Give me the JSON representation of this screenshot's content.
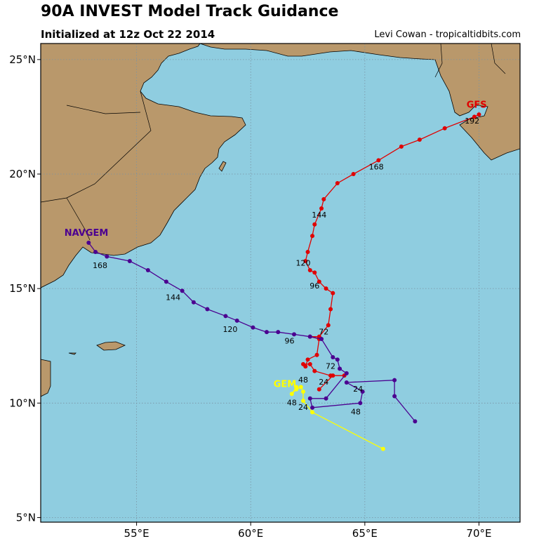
{
  "header": {
    "title": "90A INVEST Model Track Guidance",
    "subtitle": "Initialized at 12z Oct 22 2014",
    "credit": "Levi Cowan - tropicaltidbits.com"
  },
  "chart_data": {
    "type": "map",
    "lon_range": [
      50.8,
      71.8
    ],
    "lat_range": [
      4.8,
      25.7
    ],
    "x_ticks": [
      {
        "v": 55,
        "label": "55°E"
      },
      {
        "v": 60,
        "label": "60°E"
      },
      {
        "v": 65,
        "label": "65°E"
      },
      {
        "v": 70,
        "label": "70°E"
      }
    ],
    "y_ticks": [
      {
        "v": 25,
        "label": "25°N"
      },
      {
        "v": 20,
        "label": "20°N"
      },
      {
        "v": 15,
        "label": "15°N"
      },
      {
        "v": 10,
        "label": "10°N"
      },
      {
        "v": 5,
        "label": "5°N"
      }
    ],
    "grid": true,
    "colors": {
      "ocean": "#8fcde0",
      "land": "#b9986b",
      "coast": "#000000",
      "grid": "#7a93a3"
    },
    "models": [
      {
        "name": "GFS",
        "color": "#e00000",
        "points": [
          [
            63.0,
            10.6
          ],
          [
            63.6,
            11.2
          ],
          [
            64.1,
            11.2
          ],
          [
            63.5,
            11.2
          ],
          [
            62.8,
            11.4
          ],
          [
            62.6,
            11.7
          ],
          [
            62.3,
            11.7
          ],
          [
            62.4,
            11.6
          ],
          [
            62.5,
            11.9
          ],
          [
            62.9,
            12.1
          ],
          [
            63.0,
            12.8
          ],
          [
            62.6,
            12.9
          ],
          [
            63.0,
            12.9
          ],
          [
            63.4,
            13.4
          ],
          [
            63.5,
            14.1
          ],
          [
            63.6,
            14.8
          ],
          [
            63.3,
            15.0
          ],
          [
            63.0,
            15.3
          ],
          [
            62.8,
            15.7
          ],
          [
            62.6,
            15.8
          ],
          [
            62.4,
            16.2
          ],
          [
            62.5,
            16.6
          ],
          [
            62.7,
            17.3
          ],
          [
            62.8,
            17.8
          ],
          [
            63.1,
            18.5
          ],
          [
            63.2,
            18.9
          ],
          [
            63.8,
            19.6
          ],
          [
            64.5,
            20.0
          ],
          [
            65.6,
            20.6
          ],
          [
            66.6,
            21.2
          ],
          [
            67.4,
            21.5
          ],
          [
            68.5,
            22.0
          ],
          [
            69.8,
            22.5
          ],
          [
            70.0,
            22.6
          ]
        ],
        "labels": [
          {
            "lon": 63.2,
            "lat": 10.8,
            "text": "24"
          },
          {
            "lon": 62.3,
            "lat": 10.9,
            "text": "48"
          },
          {
            "lon": 63.2,
            "lat": 13.0,
            "text": "72"
          },
          {
            "lon": 62.8,
            "lat": 15.0,
            "text": "96"
          },
          {
            "lon": 62.3,
            "lat": 16.0,
            "text": "120"
          },
          {
            "lon": 63.0,
            "lat": 18.1,
            "text": "144"
          },
          {
            "lon": 65.5,
            "lat": 20.2,
            "text": "168"
          },
          {
            "lon": 69.7,
            "lat": 22.2,
            "text": "192"
          }
        ],
        "name_lon": 69.9,
        "name_lat": 22.9
      },
      {
        "name": "NAVGEM",
        "color": "#4b0090",
        "points": [
          [
            67.2,
            9.2
          ],
          [
            66.3,
            10.3
          ],
          [
            66.3,
            11.0
          ],
          [
            64.2,
            10.9
          ],
          [
            64.9,
            10.5
          ],
          [
            64.8,
            10.0
          ],
          [
            62.7,
            9.8
          ],
          [
            62.6,
            10.2
          ],
          [
            63.3,
            10.2
          ],
          [
            64.2,
            11.3
          ],
          [
            63.9,
            11.5
          ],
          [
            63.8,
            11.9
          ],
          [
            63.6,
            12.0
          ],
          [
            63.1,
            12.8
          ],
          [
            62.6,
            12.9
          ],
          [
            61.9,
            13.0
          ],
          [
            61.2,
            13.1
          ],
          [
            60.7,
            13.1
          ],
          [
            60.1,
            13.3
          ],
          [
            59.4,
            13.6
          ],
          [
            58.9,
            13.8
          ],
          [
            58.1,
            14.1
          ],
          [
            57.5,
            14.4
          ],
          [
            57.0,
            14.9
          ],
          [
            56.3,
            15.3
          ],
          [
            55.5,
            15.8
          ],
          [
            54.7,
            16.2
          ],
          [
            53.7,
            16.4
          ],
          [
            53.2,
            16.6
          ],
          [
            52.9,
            17.0
          ]
        ],
        "labels": [
          {
            "lon": 64.7,
            "lat": 10.5,
            "text": "24"
          },
          {
            "lon": 64.6,
            "lat": 9.5,
            "text": "48"
          },
          {
            "lon": 63.5,
            "lat": 11.5,
            "text": "72"
          },
          {
            "lon": 61.7,
            "lat": 12.6,
            "text": "96"
          },
          {
            "lon": 59.1,
            "lat": 13.1,
            "text": "120"
          },
          {
            "lon": 56.6,
            "lat": 14.5,
            "text": "144"
          },
          {
            "lon": 53.4,
            "lat": 15.9,
            "text": "168"
          }
        ],
        "name_lon": 52.8,
        "name_lat": 17.3
      },
      {
        "name": "GEM",
        "color": "#ffff00",
        "points": [
          [
            65.8,
            8.0
          ],
          [
            62.7,
            9.6
          ],
          [
            62.3,
            10.1
          ],
          [
            62.3,
            10.5
          ],
          [
            62.2,
            10.7
          ],
          [
            62.0,
            10.6
          ],
          [
            61.8,
            10.4
          ],
          [
            62.0,
            10.7
          ]
        ],
        "labels": [
          {
            "lon": 62.3,
            "lat": 9.7,
            "text": "24"
          },
          {
            "lon": 61.8,
            "lat": 9.9,
            "text": "48"
          }
        ],
        "name_lon": 61.5,
        "name_lat": 10.7
      }
    ]
  }
}
